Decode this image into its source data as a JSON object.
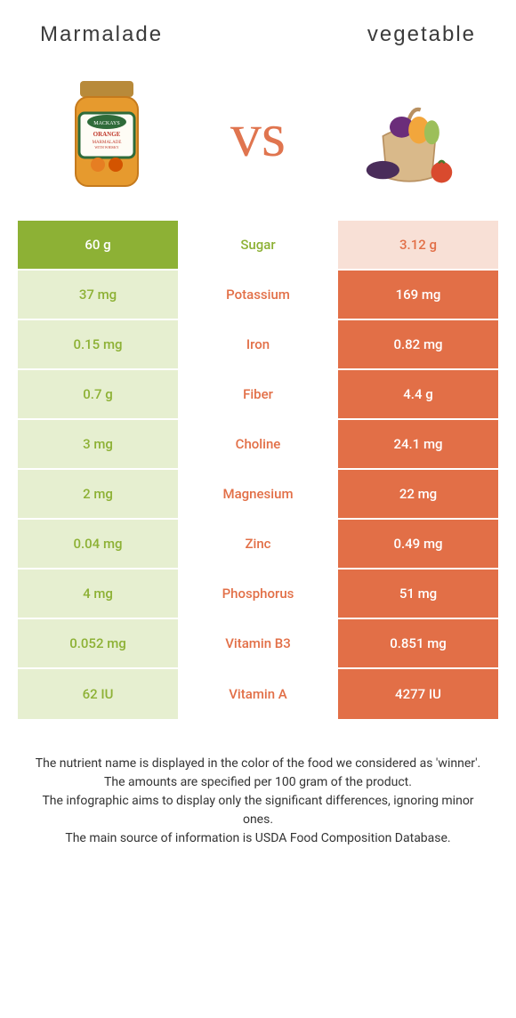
{
  "header": {
    "left": "Marmalade",
    "right": "vegetable"
  },
  "vsLabel": "vs",
  "colors": {
    "left": "#8db135",
    "right": "#e26f47",
    "leftDim": "#e6efd0",
    "rightDim": "#f8e0d6"
  },
  "rows": [
    {
      "nutrient": "Sugar",
      "left": "60 g",
      "right": "3.12 g",
      "winner": "left"
    },
    {
      "nutrient": "Potassium",
      "left": "37 mg",
      "right": "169 mg",
      "winner": "right"
    },
    {
      "nutrient": "Iron",
      "left": "0.15 mg",
      "right": "0.82 mg",
      "winner": "right"
    },
    {
      "nutrient": "Fiber",
      "left": "0.7 g",
      "right": "4.4 g",
      "winner": "right"
    },
    {
      "nutrient": "Choline",
      "left": "3 mg",
      "right": "24.1 mg",
      "winner": "right"
    },
    {
      "nutrient": "Magnesium",
      "left": "2 mg",
      "right": "22 mg",
      "winner": "right"
    },
    {
      "nutrient": "Zinc",
      "left": "0.04 mg",
      "right": "0.49 mg",
      "winner": "right"
    },
    {
      "nutrient": "Phosphorus",
      "left": "4 mg",
      "right": "51 mg",
      "winner": "right"
    },
    {
      "nutrient": "Vitamin B3",
      "left": "0.052 mg",
      "right": "0.851 mg",
      "winner": "right"
    },
    {
      "nutrient": "Vitamin A",
      "left": "62 IU",
      "right": "4277 IU",
      "winner": "right"
    }
  ],
  "footer": {
    "l1": "The nutrient name is displayed in the color of the food we considered as 'winner'.",
    "l2": "The amounts are specified per 100 gram of the product.",
    "l3": "The infographic aims to display only the significant differences, ignoring minor ones.",
    "l4": "The main source of information is USDA Food Composition Database."
  }
}
